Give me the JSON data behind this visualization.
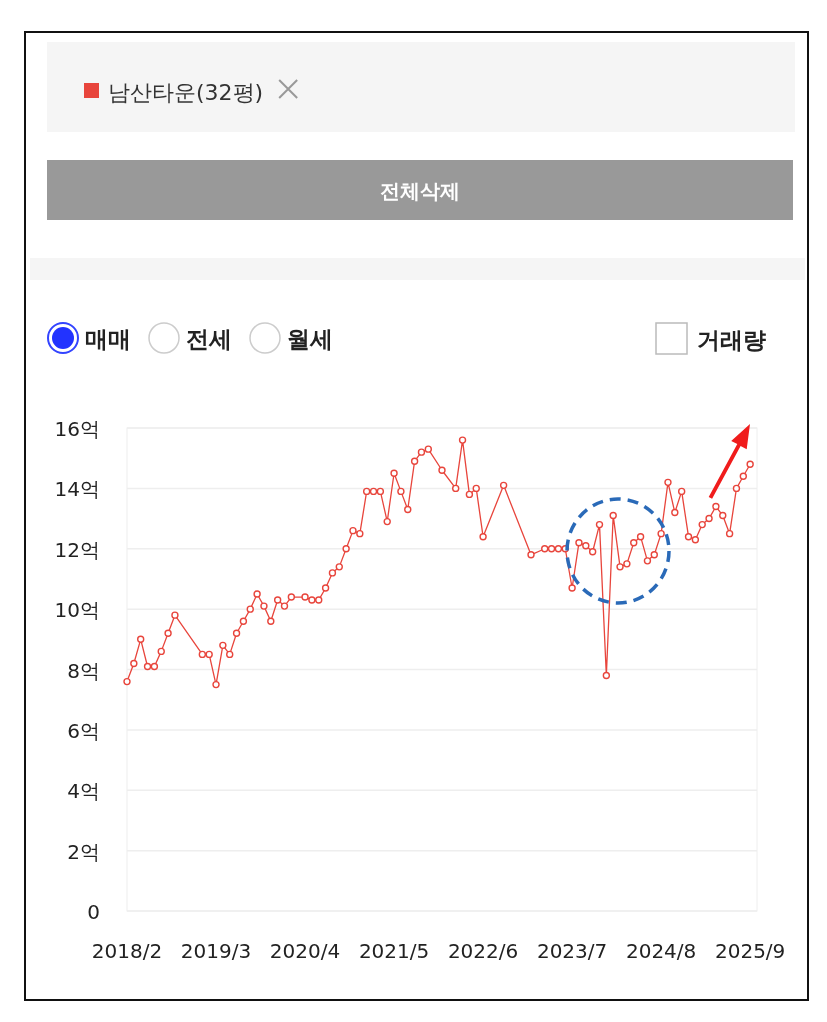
{
  "chart_data": {
    "type": "line",
    "legend": "top",
    "grid": "y",
    "marker": "circle",
    "line_style": "solid",
    "annotations": [
      "전체삭제",
      "매매",
      "전세",
      "월세",
      "거래량"
    ],
    "xlim": [
      "2018-02",
      "2025-10"
    ],
    "xticks": [
      {
        "value": "2018-02",
        "label": "2018/2"
      },
      {
        "value": "2019-03",
        "label": "2019/3"
      },
      {
        "value": "2020-04",
        "label": "2020/4"
      },
      {
        "value": "2021-05",
        "label": "2021/5"
      },
      {
        "value": "2022-06",
        "label": "2022/6"
      },
      {
        "value": "2023-07",
        "label": "2023/7"
      },
      {
        "value": "2024-08",
        "label": "2024/8"
      },
      {
        "value": "2025-09",
        "label": "2025/9"
      }
    ],
    "ylim": [
      0,
      16
    ],
    "yticks": [
      0,
      {
        "value": 2,
        "label": "2억"
      },
      {
        "value": 4,
        "label": "4억"
      },
      {
        "value": 6,
        "label": "6억"
      },
      {
        "value": 8,
        "label": "8억"
      },
      {
        "value": 10,
        "label": "10억"
      },
      {
        "value": 12,
        "label": "12억"
      },
      {
        "value": 14,
        "label": "14억"
      },
      {
        "value": 16,
        "label": "16억"
      }
    ],
    "x": [
      "2018-02",
      "2018-03",
      "2018-04",
      "2018-05",
      "2018-06",
      "2018-07",
      "2018-08",
      "2018-09",
      "2019-01",
      "2019-02",
      "2019-03",
      "2019-04",
      "2019-05",
      "2019-06",
      "2019-07",
      "2019-08",
      "2019-09",
      "2019-10",
      "2019-11",
      "2019-12",
      "2020-01",
      "2020-02",
      "2020-04",
      "2020-05",
      "2020-06",
      "2020-07",
      "2020-08",
      "2020-09",
      "2020-10",
      "2020-11",
      "2020-12",
      "2021-01",
      "2021-02",
      "2021-03",
      "2021-04",
      "2021-05",
      "2021-06",
      "2021-07",
      "2021-08",
      "2021-09",
      "2021-10",
      "2021-12",
      "2022-02",
      "2022-03",
      "2022-04",
      "2022-05",
      "2022-06",
      "2022-09",
      "2023-01",
      "2023-03",
      "2023-04",
      "2023-05",
      "2023-06",
      "2023-07",
      "2023-08",
      "2023-09",
      "2023-10",
      "2023-11",
      "2023-12",
      "2024-01",
      "2024-02",
      "2024-03",
      "2024-04",
      "2024-05",
      "2024-06",
      "2024-07",
      "2024-08",
      "2024-09",
      "2024-10",
      "2024-11",
      "2024-12",
      "2025-01",
      "2025-02",
      "2025-03",
      "2025-04",
      "2025-05",
      "2025-06",
      "2025-07",
      "2025-08",
      "2025-09"
    ],
    "series": [
      {
        "name": "남산타운(32평)",
        "color": "#e8453c",
        "values": [
          7.6,
          8.2,
          9.0,
          8.1,
          8.1,
          8.6,
          9.2,
          9.8,
          8.5,
          8.5,
          7.5,
          8.8,
          8.5,
          9.2,
          9.6,
          10.0,
          10.5,
          10.1,
          9.6,
          10.3,
          10.1,
          10.4,
          10.4,
          10.3,
          10.3,
          10.7,
          11.2,
          11.4,
          12.0,
          12.6,
          12.5,
          13.9,
          13.9,
          13.9,
          12.9,
          14.5,
          13.9,
          13.3,
          14.9,
          15.2,
          15.3,
          14.6,
          14.0,
          15.6,
          13.8,
          14.0,
          12.4,
          14.1,
          11.8,
          12.0,
          12.0,
          12.0,
          12.0,
          10.7,
          12.2,
          12.1,
          11.9,
          12.8,
          7.8,
          13.1,
          11.4,
          11.5,
          12.2,
          12.4,
          11.6,
          11.8,
          12.5,
          14.2,
          13.2,
          13.9,
          12.4,
          12.3,
          12.8,
          13.0,
          13.4,
          13.1,
          12.5,
          14.0,
          14.4,
          14.8
        ]
      }
    ]
  }
}
